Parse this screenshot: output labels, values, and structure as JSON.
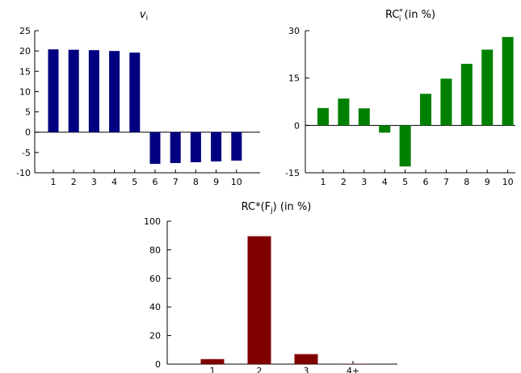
{
  "chart_data": [
    {
      "type": "bar",
      "title": "v",
      "title_sub": "i",
      "categories": [
        "1",
        "2",
        "3",
        "4",
        "5",
        "6",
        "7",
        "8",
        "9",
        "10"
      ],
      "values": [
        20.4,
        20.3,
        20.2,
        20.0,
        19.6,
        -7.8,
        -7.6,
        -7.4,
        -7.2,
        -7.0
      ],
      "ylim": [
        -10,
        25
      ],
      "yticks": [
        -10,
        -5,
        0,
        5,
        10,
        15,
        20,
        25
      ],
      "color": "#000080",
      "grid": false
    },
    {
      "type": "bar",
      "title": "RC",
      "title_sup": "*",
      "title_sub": "i",
      "title_suffix": " (in %)",
      "categories": [
        "1",
        "2",
        "3",
        "4",
        "5",
        "6",
        "7",
        "8",
        "9",
        "10"
      ],
      "values": [
        5.5,
        8.5,
        5.4,
        -2.3,
        -13.0,
        10.0,
        14.8,
        19.5,
        24.0,
        28.0
      ],
      "ylim": [
        -15,
        30
      ],
      "yticks": [
        -15,
        0,
        15,
        30
      ],
      "color": "#008000",
      "grid": false
    },
    {
      "type": "bar",
      "title": "RC*(F",
      "title_sub": "j",
      "title_suffix": ") (in %)",
      "categories": [
        "1",
        "2",
        "3",
        "4+"
      ],
      "values": [
        3.5,
        89.5,
        7.0,
        0.2
      ],
      "ylim": [
        0,
        100
      ],
      "yticks": [
        0,
        20,
        40,
        60,
        80,
        100
      ],
      "color": "#800000",
      "grid": false
    }
  ]
}
